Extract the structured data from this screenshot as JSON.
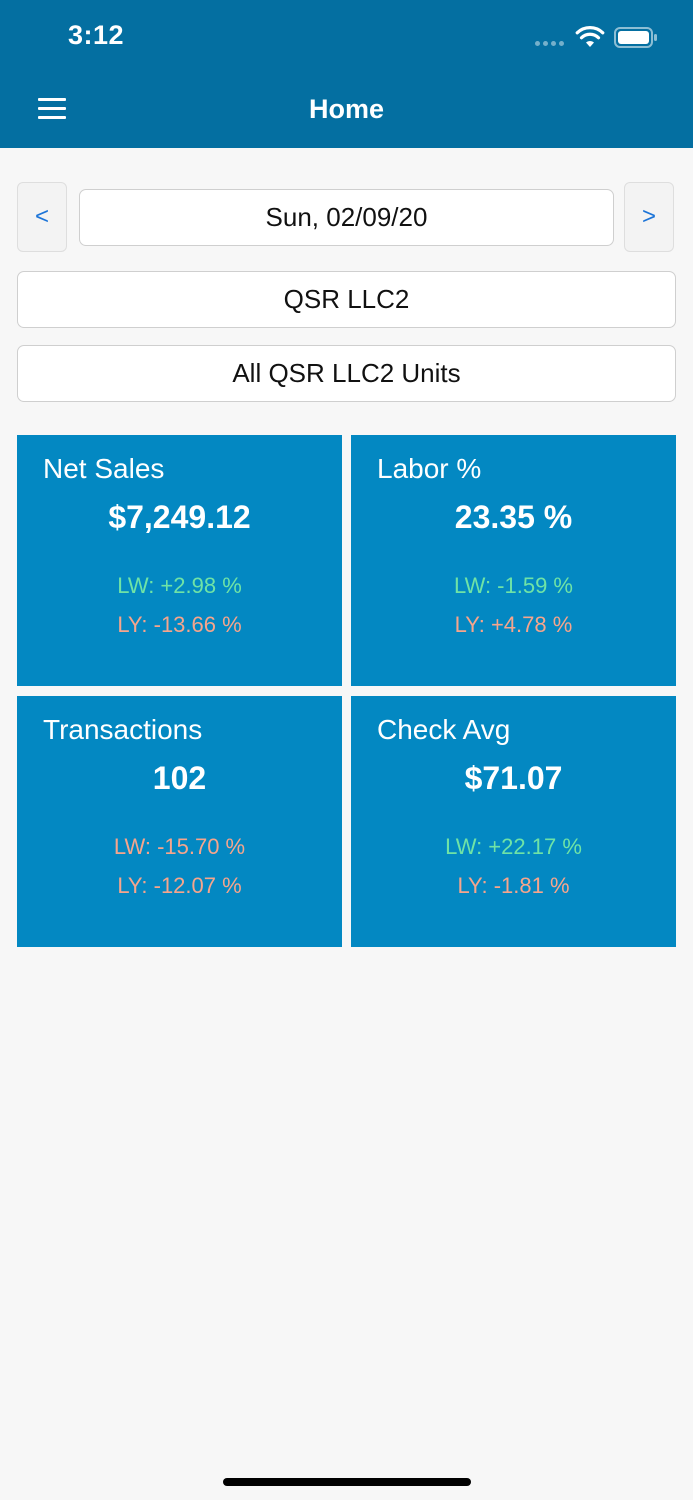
{
  "status_bar": {
    "time": "3:12"
  },
  "nav": {
    "title": "Home",
    "menu_icon": "hamburger-menu-icon"
  },
  "date_selector": {
    "prev_label": "<",
    "date": "Sun, 02/09/20",
    "next_label": ">"
  },
  "filters": {
    "company": "QSR LLC2",
    "units": "All QSR LLC2 Units"
  },
  "colors": {
    "header": "#046fa1",
    "tile": "#0388c2",
    "positive": "#6fe3a6",
    "negative": "#f6a58c",
    "accent": "#1c74d8"
  },
  "tiles": [
    {
      "title": "Net Sales",
      "value": "$7,249.12",
      "lw": "LW: +2.98 %",
      "lw_trend": "positive",
      "ly": "LY: -13.66 %",
      "ly_trend": "negative"
    },
    {
      "title": "Labor %",
      "value": "23.35 %",
      "lw": "LW: -1.59 %",
      "lw_trend": "positive",
      "ly": "LY: +4.78 %",
      "ly_trend": "negative"
    },
    {
      "title": "Transactions",
      "value": "102",
      "lw": "LW: -15.70 %",
      "lw_trend": "negative",
      "ly": "LY: -12.07 %",
      "ly_trend": "negative"
    },
    {
      "title": "Check Avg",
      "value": "$71.07",
      "lw": "LW: +22.17 %",
      "lw_trend": "positive",
      "ly": "LY: -1.81 %",
      "ly_trend": "negative"
    }
  ]
}
